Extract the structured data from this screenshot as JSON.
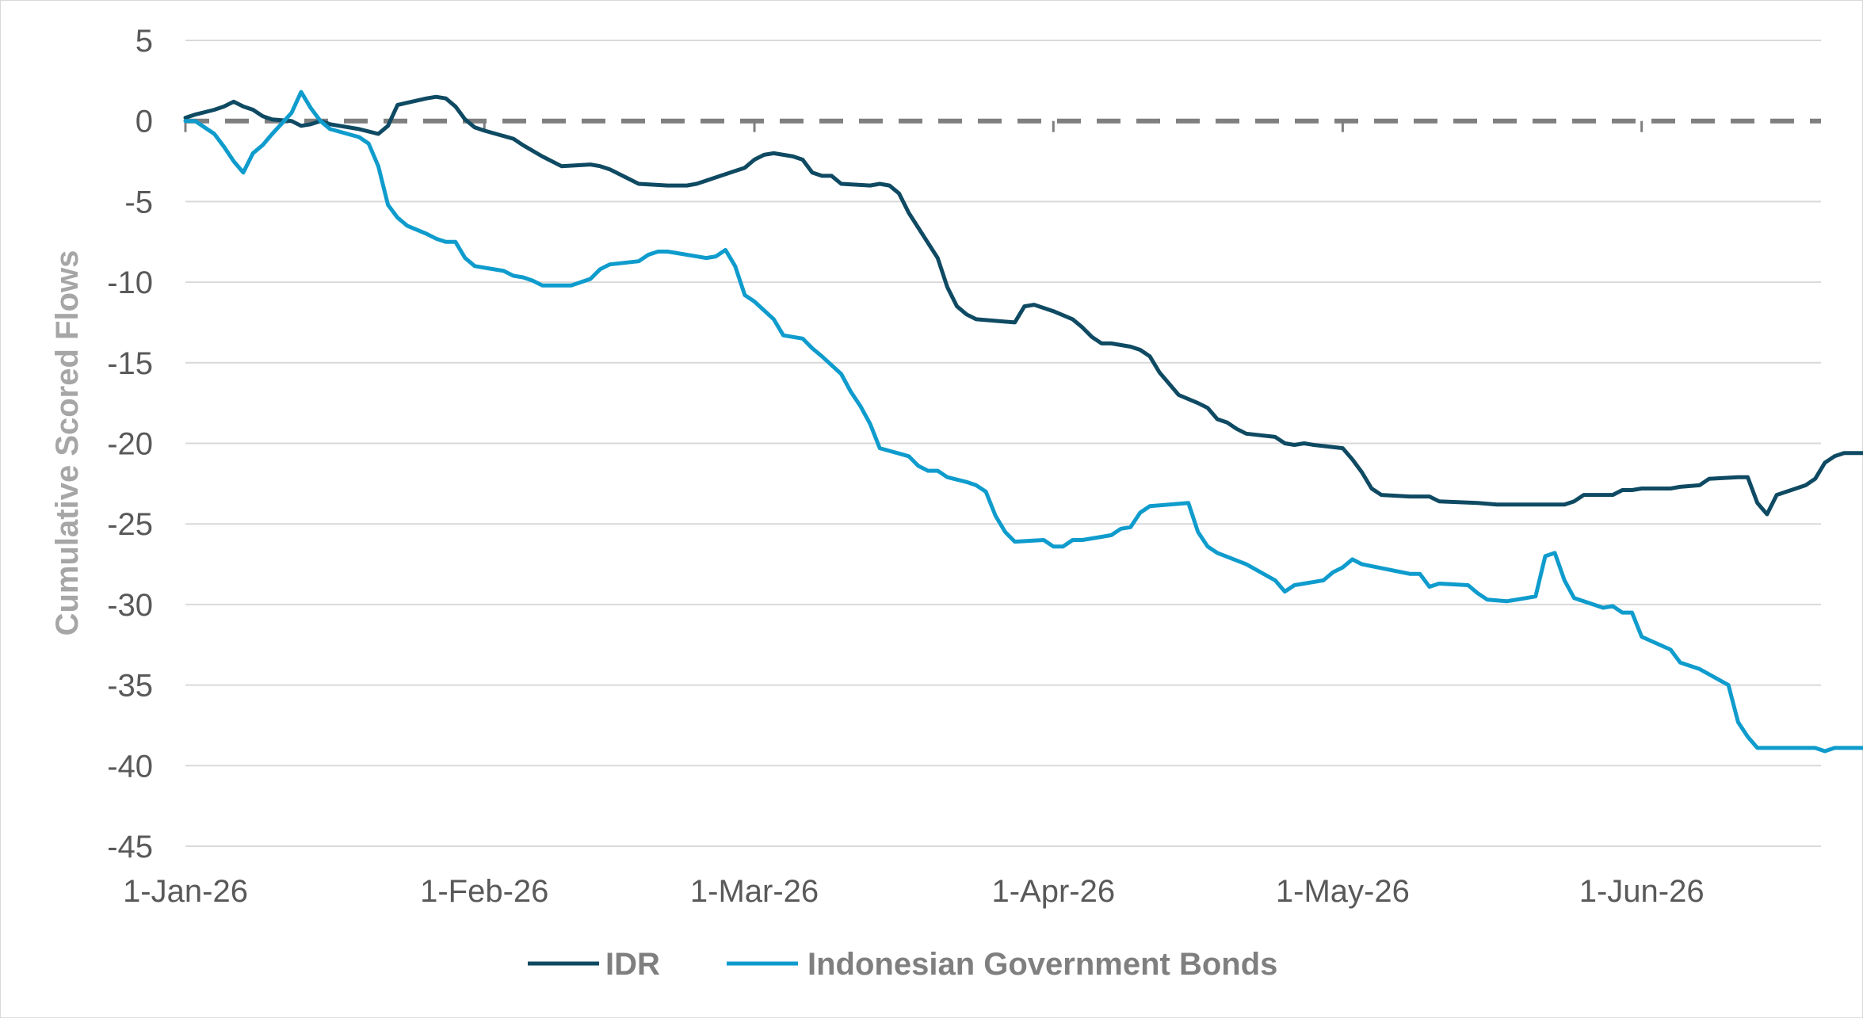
{
  "chart_data": {
    "type": "line",
    "title": "",
    "xlabel": "",
    "ylabel": "Cumulative Scored Flows",
    "ylim": [
      -45,
      5
    ],
    "yticks": [
      "5",
      "0",
      "-5",
      "-10",
      "-15",
      "-20",
      "-25",
      "-30",
      "-35",
      "-40",
      "-45"
    ],
    "xlim": [
      "2026-01-01",
      "2026-06-26"
    ],
    "xticks": [
      {
        "date": "2026-01-01",
        "label": "1-Jan-26"
      },
      {
        "date": "2026-02-01",
        "label": "1-Feb-26"
      },
      {
        "date": "2026-03-01",
        "label": "1-Mar-26"
      },
      {
        "date": "2026-04-01",
        "label": "1-Apr-26"
      },
      {
        "date": "2026-05-01",
        "label": "1-May-26"
      },
      {
        "date": "2026-06-01",
        "label": "1-Jun-26"
      }
    ],
    "grid": true,
    "zero_line": "dashed",
    "legend": "bottom",
    "series": [
      {
        "name": "IDR",
        "color": "#0f4a63",
        "points": [
          [
            "2026-01-01",
            0.2
          ],
          [
            "2026-01-02",
            0.4
          ],
          [
            "2026-01-04",
            0.7
          ],
          [
            "2026-01-05",
            0.9
          ],
          [
            "2026-01-06",
            1.2
          ],
          [
            "2026-01-07",
            0.9
          ],
          [
            "2026-01-08",
            0.7
          ],
          [
            "2026-01-09",
            0.3
          ],
          [
            "2026-01-10",
            0.1
          ],
          [
            "2026-01-12",
            0.0
          ],
          [
            "2026-01-13",
            -0.3
          ],
          [
            "2026-01-14",
            -0.2
          ],
          [
            "2026-01-15",
            0.0
          ],
          [
            "2026-01-16",
            -0.2
          ],
          [
            "2026-01-19",
            -0.5
          ],
          [
            "2026-01-21",
            -0.8
          ],
          [
            "2026-01-22",
            -0.3
          ],
          [
            "2026-01-23",
            1.0
          ],
          [
            "2026-01-26",
            1.4
          ],
          [
            "2026-01-27",
            1.5
          ],
          [
            "2026-01-28",
            1.4
          ],
          [
            "2026-01-29",
            0.9
          ],
          [
            "2026-01-30",
            0.1
          ],
          [
            "2026-01-31",
            -0.4
          ],
          [
            "2026-02-01",
            -0.6
          ],
          [
            "2026-02-04",
            -1.1
          ],
          [
            "2026-02-05",
            -1.5
          ],
          [
            "2026-02-07",
            -2.2
          ],
          [
            "2026-02-09",
            -2.8
          ],
          [
            "2026-02-12",
            -2.7
          ],
          [
            "2026-02-13",
            -2.8
          ],
          [
            "2026-02-14",
            -3.0
          ],
          [
            "2026-02-16",
            -3.6
          ],
          [
            "2026-02-17",
            -3.9
          ],
          [
            "2026-02-20",
            -4.0
          ],
          [
            "2026-02-22",
            -4.0
          ],
          [
            "2026-02-23",
            -3.9
          ],
          [
            "2026-02-25",
            -3.5
          ],
          [
            "2026-02-27",
            -3.1
          ],
          [
            "2026-02-28",
            -2.9
          ],
          [
            "2026-03-01",
            -2.4
          ],
          [
            "2026-03-02",
            -2.1
          ],
          [
            "2026-03-03",
            -2.0
          ],
          [
            "2026-03-05",
            -2.2
          ],
          [
            "2026-03-06",
            -2.4
          ],
          [
            "2026-03-07",
            -3.2
          ],
          [
            "2026-03-08",
            -3.4
          ],
          [
            "2026-03-09",
            -3.4
          ],
          [
            "2026-03-10",
            -3.9
          ],
          [
            "2026-03-13",
            -4.0
          ],
          [
            "2026-03-14",
            -3.9
          ],
          [
            "2026-03-15",
            -4.0
          ],
          [
            "2026-03-16",
            -4.5
          ],
          [
            "2026-03-17",
            -5.7
          ],
          [
            "2026-03-20",
            -8.5
          ],
          [
            "2026-03-21",
            -10.3
          ],
          [
            "2026-03-22",
            -11.5
          ],
          [
            "2026-03-23",
            -12.0
          ],
          [
            "2026-03-24",
            -12.3
          ],
          [
            "2026-03-28",
            -12.5
          ],
          [
            "2026-03-29",
            -11.5
          ],
          [
            "2026-03-30",
            -11.4
          ],
          [
            "2026-04-01",
            -11.8
          ],
          [
            "2026-04-03",
            -12.3
          ],
          [
            "2026-04-04",
            -12.8
          ],
          [
            "2026-04-05",
            -13.4
          ],
          [
            "2026-04-06",
            -13.8
          ],
          [
            "2026-04-07",
            -13.8
          ],
          [
            "2026-04-09",
            -14.0
          ],
          [
            "2026-04-10",
            -14.2
          ],
          [
            "2026-04-11",
            -14.6
          ],
          [
            "2026-04-12",
            -15.6
          ],
          [
            "2026-04-14",
            -17.0
          ],
          [
            "2026-04-16",
            -17.5
          ],
          [
            "2026-04-17",
            -17.8
          ],
          [
            "2026-04-18",
            -18.5
          ],
          [
            "2026-04-19",
            -18.7
          ],
          [
            "2026-04-20",
            -19.1
          ],
          [
            "2026-04-21",
            -19.4
          ],
          [
            "2026-04-24",
            -19.6
          ],
          [
            "2026-04-25",
            -20.0
          ],
          [
            "2026-04-26",
            -20.1
          ],
          [
            "2026-04-27",
            -20.0
          ],
          [
            "2026-04-28",
            -20.1
          ],
          [
            "2026-05-01",
            -20.3
          ],
          [
            "2026-05-02",
            -21.0
          ],
          [
            "2026-05-03",
            -21.8
          ],
          [
            "2026-05-04",
            -22.8
          ],
          [
            "2026-05-05",
            -23.2
          ],
          [
            "2026-05-08",
            -23.3
          ],
          [
            "2026-05-10",
            -23.3
          ],
          [
            "2026-05-11",
            -23.6
          ],
          [
            "2026-05-15",
            -23.7
          ],
          [
            "2026-05-17",
            -23.8
          ],
          [
            "2026-05-24",
            -23.8
          ],
          [
            "2026-05-25",
            -23.6
          ],
          [
            "2026-05-26",
            -23.2
          ],
          [
            "2026-05-29",
            -23.2
          ],
          [
            "2026-05-30",
            -22.9
          ],
          [
            "2026-05-31",
            -22.9
          ],
          [
            "2026-06-01",
            -22.8
          ],
          [
            "2026-06-04",
            -22.8
          ],
          [
            "2026-06-05",
            -22.7
          ],
          [
            "2026-06-07",
            -22.6
          ],
          [
            "2026-06-08",
            -22.2
          ],
          [
            "2026-06-11",
            -22.1
          ],
          [
            "2026-06-12",
            -22.1
          ],
          [
            "2026-06-13",
            -23.7
          ],
          [
            "2026-06-14",
            -24.4
          ],
          [
            "2026-06-15",
            -23.2
          ],
          [
            "2026-06-17",
            -22.8
          ],
          [
            "2026-06-18",
            -22.6
          ],
          [
            "2026-06-19",
            -22.2
          ],
          [
            "2026-06-20",
            -21.2
          ],
          [
            "2026-06-21",
            -20.8
          ],
          [
            "2026-06-22",
            -20.6
          ],
          [
            "2026-06-24",
            -20.6
          ],
          [
            "2026-06-25",
            -20.5
          ],
          [
            "2026-06-26",
            -20.5
          ]
        ]
      },
      {
        "name": "Indonesian Government Bonds",
        "color": "#0f9ccd",
        "points": [
          [
            "2026-01-01",
            0.0
          ],
          [
            "2026-01-02",
            0.0
          ],
          [
            "2026-01-04",
            -0.8
          ],
          [
            "2026-01-05",
            -1.6
          ],
          [
            "2026-01-06",
            -2.5
          ],
          [
            "2026-01-07",
            -3.2
          ],
          [
            "2026-01-08",
            -2.0
          ],
          [
            "2026-01-09",
            -1.5
          ],
          [
            "2026-01-10",
            -0.8
          ],
          [
            "2026-01-12",
            0.5
          ],
          [
            "2026-01-13",
            1.8
          ],
          [
            "2026-01-14",
            0.8
          ],
          [
            "2026-01-15",
            0.0
          ],
          [
            "2026-01-16",
            -0.5
          ],
          [
            "2026-01-19",
            -1.0
          ],
          [
            "2026-01-20",
            -1.4
          ],
          [
            "2026-01-21",
            -2.8
          ],
          [
            "2026-01-22",
            -5.2
          ],
          [
            "2026-01-23",
            -6.0
          ],
          [
            "2026-01-24",
            -6.5
          ],
          [
            "2026-01-26",
            -7.0
          ],
          [
            "2026-01-27",
            -7.3
          ],
          [
            "2026-01-28",
            -7.5
          ],
          [
            "2026-01-29",
            -7.5
          ],
          [
            "2026-01-30",
            -8.5
          ],
          [
            "2026-01-31",
            -9.0
          ],
          [
            "2026-02-03",
            -9.3
          ],
          [
            "2026-02-04",
            -9.6
          ],
          [
            "2026-02-05",
            -9.7
          ],
          [
            "2026-02-06",
            -9.9
          ],
          [
            "2026-02-07",
            -10.2
          ],
          [
            "2026-02-10",
            -10.2
          ],
          [
            "2026-02-11",
            -10.0
          ],
          [
            "2026-02-12",
            -9.8
          ],
          [
            "2026-02-13",
            -9.2
          ],
          [
            "2026-02-14",
            -8.9
          ],
          [
            "2026-02-17",
            -8.7
          ],
          [
            "2026-02-18",
            -8.3
          ],
          [
            "2026-02-19",
            -8.1
          ],
          [
            "2026-02-20",
            -8.1
          ],
          [
            "2026-02-21",
            -8.2
          ],
          [
            "2026-02-24",
            -8.5
          ],
          [
            "2026-02-25",
            -8.4
          ],
          [
            "2026-02-26",
            -8.0
          ],
          [
            "2026-02-27",
            -9.0
          ],
          [
            "2026-02-28",
            -10.8
          ],
          [
            "2026-03-01",
            -11.2
          ],
          [
            "2026-03-03",
            -12.3
          ],
          [
            "2026-03-04",
            -13.3
          ],
          [
            "2026-03-06",
            -13.5
          ],
          [
            "2026-03-07",
            -14.1
          ],
          [
            "2026-03-08",
            -14.6
          ],
          [
            "2026-03-10",
            -15.7
          ],
          [
            "2026-03-11",
            -16.8
          ],
          [
            "2026-03-12",
            -17.7
          ],
          [
            "2026-03-13",
            -18.8
          ],
          [
            "2026-03-14",
            -20.3
          ],
          [
            "2026-03-17",
            -20.8
          ],
          [
            "2026-03-18",
            -21.4
          ],
          [
            "2026-03-19",
            -21.7
          ],
          [
            "2026-03-20",
            -21.7
          ],
          [
            "2026-03-21",
            -22.1
          ],
          [
            "2026-03-23",
            -22.4
          ],
          [
            "2026-03-24",
            -22.6
          ],
          [
            "2026-03-25",
            -23.0
          ],
          [
            "2026-03-26",
            -24.5
          ],
          [
            "2026-03-27",
            -25.5
          ],
          [
            "2026-03-28",
            -26.1
          ],
          [
            "2026-03-31",
            -26.0
          ],
          [
            "2026-04-01",
            -26.4
          ],
          [
            "2026-04-02",
            -26.4
          ],
          [
            "2026-04-03",
            -26.0
          ],
          [
            "2026-04-04",
            -26.0
          ],
          [
            "2026-04-06",
            -25.8
          ],
          [
            "2026-04-07",
            -25.7
          ],
          [
            "2026-04-08",
            -25.3
          ],
          [
            "2026-04-09",
            -25.2
          ],
          [
            "2026-04-10",
            -24.3
          ],
          [
            "2026-04-11",
            -23.9
          ],
          [
            "2026-04-15",
            -23.7
          ],
          [
            "2026-04-16",
            -25.5
          ],
          [
            "2026-04-17",
            -26.4
          ],
          [
            "2026-04-18",
            -26.8
          ],
          [
            "2026-04-21",
            -27.5
          ],
          [
            "2026-04-24",
            -28.5
          ],
          [
            "2026-04-25",
            -29.2
          ],
          [
            "2026-04-26",
            -28.8
          ],
          [
            "2026-04-27",
            -28.7
          ],
          [
            "2026-04-29",
            -28.5
          ],
          [
            "2026-04-30",
            -28.0
          ],
          [
            "2026-05-01",
            -27.7
          ],
          [
            "2026-05-02",
            -27.2
          ],
          [
            "2026-05-03",
            -27.5
          ],
          [
            "2026-05-08",
            -28.1
          ],
          [
            "2026-05-09",
            -28.1
          ],
          [
            "2026-05-10",
            -28.9
          ],
          [
            "2026-05-11",
            -28.7
          ],
          [
            "2026-05-14",
            -28.8
          ],
          [
            "2026-05-15",
            -29.3
          ],
          [
            "2026-05-16",
            -29.7
          ],
          [
            "2026-05-18",
            -29.8
          ],
          [
            "2026-05-20",
            -29.6
          ],
          [
            "2026-05-21",
            -29.5
          ],
          [
            "2026-05-22",
            -27.0
          ],
          [
            "2026-05-23",
            -26.8
          ],
          [
            "2026-05-24",
            -28.5
          ],
          [
            "2026-05-25",
            -29.6
          ],
          [
            "2026-05-27",
            -30.0
          ],
          [
            "2026-05-28",
            -30.2
          ],
          [
            "2026-05-29",
            -30.1
          ],
          [
            "2026-05-30",
            -30.5
          ],
          [
            "2026-05-31",
            -30.5
          ],
          [
            "2026-06-01",
            -32.0
          ],
          [
            "2026-06-04",
            -32.8
          ],
          [
            "2026-06-05",
            -33.6
          ],
          [
            "2026-06-06",
            -33.8
          ],
          [
            "2026-06-07",
            -34.0
          ],
          [
            "2026-06-10",
            -35.0
          ],
          [
            "2026-06-11",
            -37.3
          ],
          [
            "2026-06-12",
            -38.2
          ],
          [
            "2026-06-13",
            -38.9
          ],
          [
            "2026-06-19",
            -38.9
          ],
          [
            "2026-06-20",
            -39.1
          ],
          [
            "2026-06-21",
            -38.9
          ],
          [
            "2026-06-24",
            -38.9
          ],
          [
            "2026-06-25",
            -38.5
          ],
          [
            "2026-06-26",
            -38.2
          ]
        ]
      }
    ]
  }
}
